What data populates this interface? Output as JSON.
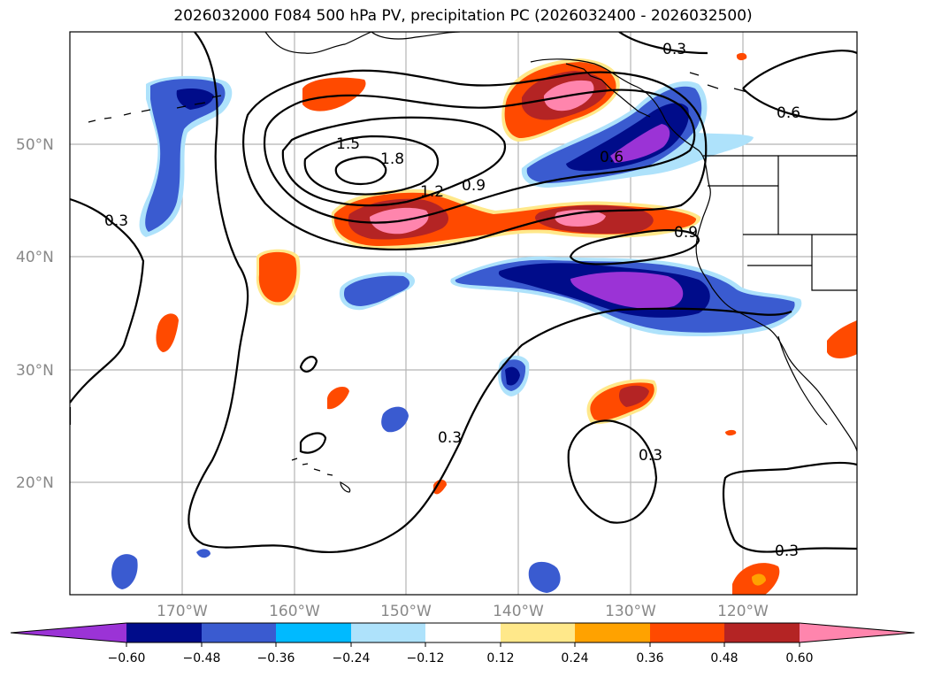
{
  "title": "2026032000 F084 500 hPa PV, precipitation PC (2026032400 - 2026032500)",
  "map": {
    "lon_labels": [
      "170°W",
      "160°W",
      "150°W",
      "140°W",
      "130°W",
      "120°W"
    ],
    "lat_labels": [
      "50°N",
      "40°N",
      "30°N",
      "20°N"
    ],
    "contour_labels": [
      "0.3",
      "0.6",
      "0.9",
      "1.2",
      "1.5",
      "1.8",
      "0.6",
      "0.9",
      "0.3",
      "0.3",
      "0.3",
      "0.3"
    ]
  },
  "colorbar": {
    "ticks": [
      "−0.60",
      "−0.48",
      "−0.36",
      "−0.24",
      "−0.12",
      "0.12",
      "0.24",
      "0.36",
      "0.48",
      "0.60"
    ],
    "colors": [
      "#9b33d6",
      "#000c8a",
      "#3a5bd0",
      "#00baff",
      "#aee2fb",
      "#ffffff",
      "#ffe88a",
      "#ffa200",
      "#ff4a00",
      "#b42424",
      "#ff85ad"
    ]
  }
}
